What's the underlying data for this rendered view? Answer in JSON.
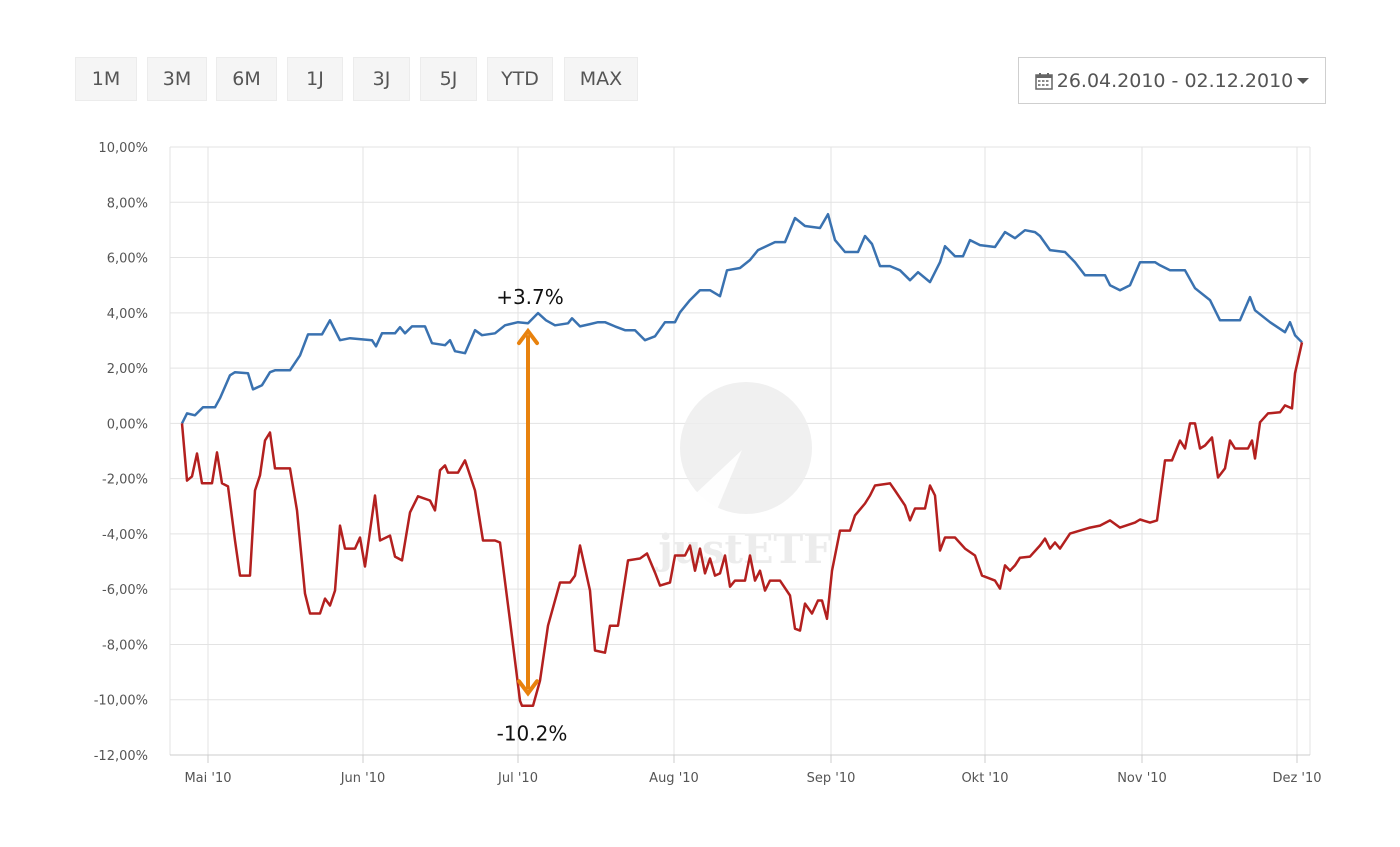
{
  "range_buttons": [
    "1M",
    "3M",
    "6M",
    "1J",
    "3J",
    "5J",
    "YTD",
    "MAX"
  ],
  "date_range": {
    "icon": "calendar-icon",
    "label": "26.04.2010 - 02.12.2010",
    "caret": "caret-down-icon"
  },
  "colors": {
    "series_blue": "#3a72b0",
    "series_red": "#b3201f",
    "arrow": "#e8820e",
    "grid": "#e3e3e3"
  },
  "chart_data": {
    "type": "line",
    "title": "",
    "xlabel": "",
    "ylabel": "",
    "x_unit": "days since 01.05.2010 (approx.)",
    "xlim": [
      -7.6,
      220.4
    ],
    "ylim": [
      -12,
      10
    ],
    "grid": true,
    "y_ticks": [
      10,
      8,
      6,
      4,
      2,
      0,
      -2,
      -4,
      -6,
      -8,
      -10,
      -12
    ],
    "y_tick_labels": [
      "10,00%",
      "8,00%",
      "6,00%",
      "4,00%",
      "2,00%",
      "0,00%",
      "-2,00%",
      "-4,00%",
      "-6,00%",
      "-8,00%",
      "-10,00%",
      "-12,00%"
    ],
    "x_ticks": [
      0,
      31,
      62,
      93.2,
      124.6,
      155.4,
      186.8,
      217.8
    ],
    "x_tick_labels": [
      "Mai '10",
      "Jun '10",
      "Jul '10",
      "Aug '10",
      "Sep '10",
      "Okt '10",
      "Nov '10",
      "Dez '10"
    ],
    "watermark": "justETF",
    "series": [
      {
        "name": "blue",
        "color": "#3a72b0",
        "points": [
          [
            -5.2,
            0
          ],
          [
            -4.2,
            0.36
          ],
          [
            -2.6,
            0.29
          ],
          [
            -1,
            0.58
          ],
          [
            1.4,
            0.58
          ],
          [
            2.4,
            0.91
          ],
          [
            4.4,
            1.74
          ],
          [
            5.4,
            1.85
          ],
          [
            8,
            1.81
          ],
          [
            9,
            1.23
          ],
          [
            10.8,
            1.38
          ],
          [
            12.4,
            1.85
          ],
          [
            13.4,
            1.92
          ],
          [
            16.4,
            1.92
          ],
          [
            18.4,
            2.46
          ],
          [
            20,
            3.22
          ],
          [
            22.8,
            3.22
          ],
          [
            24.4,
            3.73
          ],
          [
            26.4,
            3.01
          ],
          [
            28.4,
            3.08
          ],
          [
            32.8,
            3.01
          ],
          [
            33.6,
            2.79
          ],
          [
            34.8,
            3.26
          ],
          [
            37.4,
            3.26
          ],
          [
            38.4,
            3.48
          ],
          [
            39.4,
            3.26
          ],
          [
            40.8,
            3.51
          ],
          [
            43.4,
            3.51
          ],
          [
            44.8,
            2.9
          ],
          [
            47.4,
            2.83
          ],
          [
            48.4,
            3.01
          ],
          [
            49.4,
            2.61
          ],
          [
            51.4,
            2.54
          ],
          [
            53.4,
            3.37
          ],
          [
            54.8,
            3.19
          ],
          [
            57.4,
            3.26
          ],
          [
            59.4,
            3.55
          ],
          [
            62,
            3.66
          ],
          [
            64,
            3.62
          ],
          [
            66,
            3.99
          ],
          [
            67.6,
            3.73
          ],
          [
            69.4,
            3.55
          ],
          [
            72,
            3.62
          ],
          [
            72.8,
            3.8
          ],
          [
            74.4,
            3.51
          ],
          [
            76.4,
            3.59
          ],
          [
            78,
            3.66
          ],
          [
            79.4,
            3.66
          ],
          [
            81.4,
            3.51
          ],
          [
            83.4,
            3.37
          ],
          [
            85.4,
            3.37
          ],
          [
            87.4,
            3.01
          ],
          [
            89.4,
            3.15
          ],
          [
            91.4,
            3.66
          ],
          [
            93.4,
            3.66
          ],
          [
            94.4,
            4.02
          ],
          [
            96.4,
            4.46
          ],
          [
            98.4,
            4.82
          ],
          [
            100.4,
            4.82
          ],
          [
            102.4,
            4.6
          ],
          [
            103.8,
            5.54
          ],
          [
            106.4,
            5.62
          ],
          [
            108.4,
            5.91
          ],
          [
            110,
            6.27
          ],
          [
            113.4,
            6.56
          ],
          [
            115.4,
            6.56
          ],
          [
            117.4,
            7.43
          ],
          [
            119.4,
            7.14
          ],
          [
            122.4,
            7.07
          ],
          [
            124,
            7.57
          ],
          [
            125.4,
            6.63
          ],
          [
            127.4,
            6.2
          ],
          [
            130,
            6.2
          ],
          [
            131.4,
            6.78
          ],
          [
            132.8,
            6.49
          ],
          [
            134.4,
            5.69
          ],
          [
            136.4,
            5.69
          ],
          [
            138.4,
            5.54
          ],
          [
            140.4,
            5.18
          ],
          [
            142,
            5.47
          ],
          [
            144.4,
            5.11
          ],
          [
            146.4,
            5.83
          ],
          [
            147.4,
            6.41
          ],
          [
            149.4,
            6.05
          ],
          [
            151,
            6.05
          ],
          [
            152.4,
            6.63
          ],
          [
            154.4,
            6.45
          ],
          [
            157.4,
            6.38
          ],
          [
            159.4,
            6.92
          ],
          [
            161.4,
            6.7
          ],
          [
            163.4,
            6.99
          ],
          [
            165.4,
            6.92
          ],
          [
            166.4,
            6.78
          ],
          [
            168.4,
            6.27
          ],
          [
            171.4,
            6.2
          ],
          [
            173.4,
            5.83
          ],
          [
            175.4,
            5.36
          ],
          [
            179.4,
            5.36
          ],
          [
            180.4,
            5.0
          ],
          [
            182.4,
            4.82
          ],
          [
            184.4,
            5.0
          ],
          [
            186.4,
            5.83
          ],
          [
            189.4,
            5.83
          ],
          [
            190.4,
            5.72
          ],
          [
            192.4,
            5.54
          ],
          [
            195.4,
            5.54
          ],
          [
            197.4,
            4.89
          ],
          [
            200.4,
            4.46
          ],
          [
            202.4,
            3.73
          ],
          [
            206.4,
            3.73
          ],
          [
            208.4,
            4.57
          ],
          [
            209.4,
            4.09
          ],
          [
            212.4,
            3.66
          ],
          [
            215.4,
            3.3
          ],
          [
            216.4,
            3.66
          ],
          [
            217.4,
            3.19
          ],
          [
            218.8,
            2.93
          ]
        ]
      },
      {
        "name": "red",
        "color": "#b3201f",
        "points": [
          [
            -5.2,
            0
          ],
          [
            -4.2,
            -2.07
          ],
          [
            -3.2,
            -1.92
          ],
          [
            -2.2,
            -1.09
          ],
          [
            -1.2,
            -2.17
          ],
          [
            0.8,
            -2.17
          ],
          [
            1.8,
            -1.05
          ],
          [
            2.8,
            -2.17
          ],
          [
            4,
            -2.28
          ],
          [
            5.4,
            -4.24
          ],
          [
            6.4,
            -5.51
          ],
          [
            8.4,
            -5.51
          ],
          [
            9.4,
            -2.43
          ],
          [
            10.4,
            -1.88
          ],
          [
            11.4,
            -0.62
          ],
          [
            12.4,
            -0.33
          ],
          [
            13.4,
            -1.63
          ],
          [
            16.4,
            -1.63
          ],
          [
            17.8,
            -3.15
          ],
          [
            19.4,
            -6.16
          ],
          [
            20.4,
            -6.88
          ],
          [
            22.4,
            -6.88
          ],
          [
            23.4,
            -6.34
          ],
          [
            24.4,
            -6.59
          ],
          [
            25.4,
            -6.05
          ],
          [
            26.4,
            -3.7
          ],
          [
            27.4,
            -4.53
          ],
          [
            29.4,
            -4.53
          ],
          [
            30.4,
            -4.13
          ],
          [
            31.4,
            -5.18
          ],
          [
            33.4,
            -2.61
          ],
          [
            34.4,
            -4.24
          ],
          [
            36.4,
            -4.06
          ],
          [
            37.4,
            -4.82
          ],
          [
            38.8,
            -4.96
          ],
          [
            40.4,
            -3.22
          ],
          [
            42,
            -2.64
          ],
          [
            44.4,
            -2.79
          ],
          [
            45.4,
            -3.15
          ],
          [
            46.4,
            -1.7
          ],
          [
            47.4,
            -1.52
          ],
          [
            48,
            -1.78
          ],
          [
            50,
            -1.78
          ],
          [
            51.4,
            -1.34
          ],
          [
            52.4,
            -1.88
          ],
          [
            53.4,
            -2.43
          ],
          [
            55,
            -4.24
          ],
          [
            57.4,
            -4.24
          ],
          [
            58.4,
            -4.31
          ],
          [
            60.4,
            -7.14
          ],
          [
            62.4,
            -10.04
          ],
          [
            62.8,
            -10.22
          ],
          [
            65,
            -10.22
          ],
          [
            66.4,
            -9.31
          ],
          [
            68,
            -7.32
          ],
          [
            70.4,
            -5.76
          ],
          [
            72.4,
            -5.76
          ],
          [
            73.4,
            -5.51
          ],
          [
            74.4,
            -4.42
          ],
          [
            76.4,
            -6.05
          ],
          [
            77.4,
            -8.22
          ],
          [
            79.4,
            -8.3
          ],
          [
            80.4,
            -7.32
          ],
          [
            82,
            -7.32
          ],
          [
            84,
            -4.96
          ],
          [
            86.4,
            -4.89
          ],
          [
            87.8,
            -4.71
          ],
          [
            89.4,
            -5.4
          ],
          [
            90.4,
            -5.87
          ],
          [
            92.4,
            -5.76
          ],
          [
            93.4,
            -4.78
          ],
          [
            95.4,
            -4.78
          ],
          [
            96.4,
            -4.42
          ],
          [
            97.4,
            -5.33
          ],
          [
            98.4,
            -4.53
          ],
          [
            99.4,
            -5.43
          ],
          [
            100.4,
            -4.89
          ],
          [
            101.4,
            -5.51
          ],
          [
            102.4,
            -5.43
          ],
          [
            103.4,
            -4.78
          ],
          [
            104.4,
            -5.91
          ],
          [
            105.4,
            -5.69
          ],
          [
            107.4,
            -5.69
          ],
          [
            108.4,
            -4.78
          ],
          [
            109.4,
            -5.69
          ],
          [
            110.4,
            -5.33
          ],
          [
            111.4,
            -6.05
          ],
          [
            112.4,
            -5.69
          ],
          [
            114.4,
            -5.69
          ],
          [
            116.4,
            -6.23
          ],
          [
            117.4,
            -7.43
          ],
          [
            118.4,
            -7.5
          ],
          [
            119.4,
            -6.52
          ],
          [
            120.8,
            -6.88
          ],
          [
            122,
            -6.41
          ],
          [
            122.8,
            -6.41
          ],
          [
            123.8,
            -7.07
          ],
          [
            124.8,
            -5.33
          ],
          [
            126.4,
            -3.88
          ],
          [
            128.4,
            -3.88
          ],
          [
            129.4,
            -3.33
          ],
          [
            131.4,
            -2.9
          ],
          [
            132.4,
            -2.61
          ],
          [
            133.4,
            -2.25
          ],
          [
            136.4,
            -2.17
          ],
          [
            137.4,
            -2.43
          ],
          [
            139.4,
            -2.97
          ],
          [
            140.4,
            -3.51
          ],
          [
            141.4,
            -3.08
          ],
          [
            143.4,
            -3.08
          ],
          [
            144.4,
            -2.25
          ],
          [
            145.4,
            -2.61
          ],
          [
            146.4,
            -4.6
          ],
          [
            147.4,
            -4.13
          ],
          [
            149.4,
            -4.13
          ],
          [
            151.4,
            -4.53
          ],
          [
            153.4,
            -4.78
          ],
          [
            154.8,
            -5.51
          ],
          [
            157.4,
            -5.69
          ],
          [
            158.4,
            -5.98
          ],
          [
            159.4,
            -5.14
          ],
          [
            160.4,
            -5.33
          ],
          [
            161.4,
            -5.14
          ],
          [
            162.4,
            -4.86
          ],
          [
            164.4,
            -4.82
          ],
          [
            166.4,
            -4.42
          ],
          [
            167.4,
            -4.17
          ],
          [
            168.4,
            -4.53
          ],
          [
            169.4,
            -4.31
          ],
          [
            170.4,
            -4.53
          ],
          [
            172.4,
            -3.99
          ],
          [
            174.4,
            -3.88
          ],
          [
            176.4,
            -3.77
          ],
          [
            178.4,
            -3.7
          ],
          [
            180.4,
            -3.51
          ],
          [
            182.4,
            -3.77
          ],
          [
            185.4,
            -3.59
          ],
          [
            186.4,
            -3.48
          ],
          [
            188.4,
            -3.59
          ],
          [
            189.8,
            -3.51
          ],
          [
            191.4,
            -1.34
          ],
          [
            192.8,
            -1.34
          ],
          [
            194.4,
            -0.62
          ],
          [
            195.4,
            -0.91
          ],
          [
            196.4,
            0
          ],
          [
            197.4,
            0
          ],
          [
            198.4,
            -0.91
          ],
          [
            199.4,
            -0.8
          ],
          [
            200.8,
            -0.51
          ],
          [
            202,
            -1.96
          ],
          [
            203.4,
            -1.63
          ],
          [
            204.4,
            -0.62
          ],
          [
            205.4,
            -0.91
          ],
          [
            208,
            -0.91
          ],
          [
            208.8,
            -0.62
          ],
          [
            209.4,
            -1.27
          ],
          [
            210.4,
            0.04
          ],
          [
            212,
            0.36
          ],
          [
            214.4,
            0.4
          ],
          [
            215.4,
            0.65
          ],
          [
            216.8,
            0.54
          ],
          [
            217.4,
            1.81
          ],
          [
            218.8,
            2.93
          ]
        ]
      }
    ],
    "annotations": {
      "arrow": {
        "x": 64,
        "y_top": 3.7,
        "y_bottom": -10.2,
        "color": "#e8820e"
      },
      "top_label": "+3.7%",
      "bottom_label": "-10.2%"
    }
  }
}
